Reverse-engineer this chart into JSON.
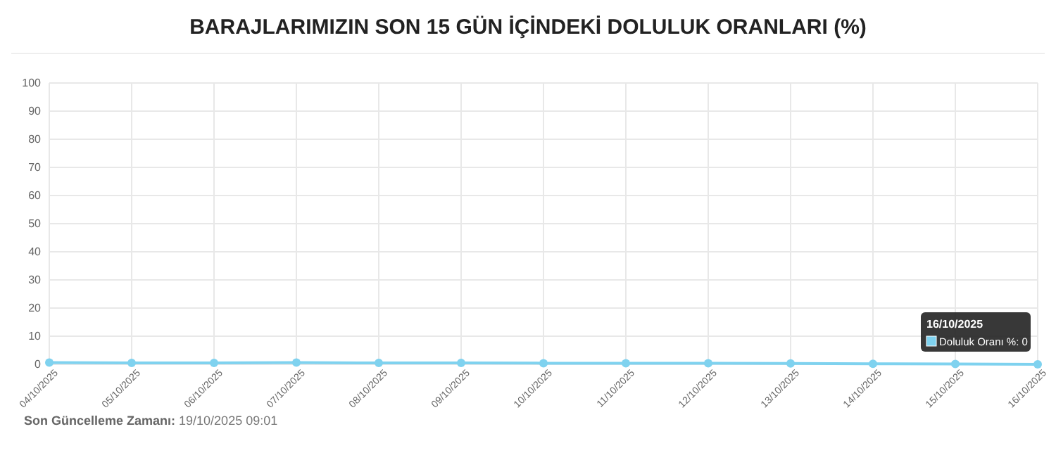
{
  "chart_data": {
    "type": "line",
    "title": "BARAJLARIMIZIN SON 15 GÜN İÇİNDEKİ DOLULUK ORANLARI (%)",
    "categories": [
      "04/10/2025",
      "05/10/2025",
      "06/10/2025",
      "07/10/2025",
      "08/10/2025",
      "09/10/2025",
      "10/10/2025",
      "11/10/2025",
      "12/10/2025",
      "13/10/2025",
      "14/10/2025",
      "15/10/2025",
      "16/10/2025"
    ],
    "series": [
      {
        "name": "Doluluk Oranı %:",
        "color": "#7fd2ef",
        "values": [
          0.6,
          0.5,
          0.5,
          0.6,
          0.5,
          0.5,
          0.4,
          0.4,
          0.4,
          0.3,
          0.2,
          0.1,
          0
        ],
        "value_labels": [
          null,
          null,
          null,
          null,
          null,
          null,
          null,
          null,
          null,
          null,
          null,
          null,
          "0"
        ]
      }
    ],
    "ylim": [
      0,
      100
    ],
    "yticks": [
      0,
      10,
      20,
      30,
      40,
      50,
      60,
      70,
      80,
      90,
      100
    ],
    "grid": true,
    "marker": "circle",
    "legend": "bottom right",
    "annotations": [
      "16/10/2025",
      "Son Güncelleme Zamanı: 19/10/2025 09:01"
    ]
  }
}
